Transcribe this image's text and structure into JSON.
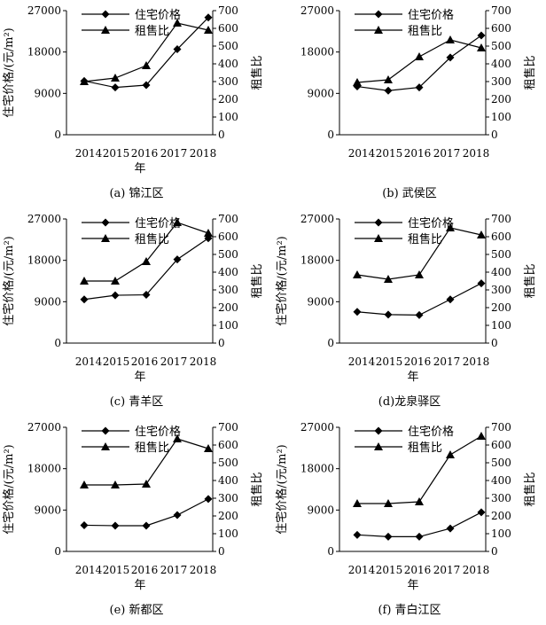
{
  "chart_data": [
    {
      "type": "line",
      "caption": "(a) 锦江区",
      "categories": [
        "2014",
        "2015",
        "2016",
        "2017",
        "2018"
      ],
      "xlabel": "年",
      "ylabel": "住宅价格/(元/m²)",
      "ylabel2": "租售比",
      "ylim": [
        0,
        27000
      ],
      "ylim2": [
        0,
        700
      ],
      "yticks": [
        "0",
        "9000",
        "18000",
        "27000"
      ],
      "yticks2": [
        "0",
        "100",
        "200",
        "300",
        "400",
        "500",
        "600",
        "700"
      ],
      "series": [
        {
          "name": "住宅价格",
          "marker": "diamond",
          "axis": "left",
          "values": [
            11700,
            10300,
            10800,
            18600,
            25500
          ]
        },
        {
          "name": "租售比",
          "marker": "triangle",
          "axis": "right",
          "values": [
            300,
            320,
            390,
            630,
            590
          ]
        }
      ]
    },
    {
      "type": "line",
      "caption": "(b) 武侯区",
      "categories": [
        "2014",
        "2015",
        "2016",
        "2017",
        "2018"
      ],
      "xlabel": "",
      "ylabel": "",
      "ylabel2": "租售比",
      "ylim": [
        0,
        27000
      ],
      "ylim2": [
        0,
        700
      ],
      "yticks": [
        "0",
        "9000",
        "18000",
        "27000"
      ],
      "yticks2": [
        "0",
        "100",
        "200",
        "300",
        "400",
        "500",
        "600",
        "700"
      ],
      "series": [
        {
          "name": "住宅价格",
          "marker": "diamond",
          "axis": "left",
          "values": [
            10500,
            9600,
            10300,
            16800,
            21600
          ]
        },
        {
          "name": "租售比",
          "marker": "triangle",
          "axis": "right",
          "values": [
            295,
            310,
            440,
            535,
            490
          ]
        }
      ]
    },
    {
      "type": "line",
      "caption": "(c) 青羊区",
      "categories": [
        "2014",
        "2015",
        "2016",
        "2017",
        "2018"
      ],
      "xlabel": "年",
      "ylabel": "住宅价格/(元/m²)",
      "ylabel2": "租售比",
      "ylim": [
        0,
        27000
      ],
      "ylim2": [
        0,
        700
      ],
      "yticks": [
        "0",
        "9000",
        "18000",
        "27000"
      ],
      "yticks2": [
        "0",
        "100",
        "200",
        "300",
        "400",
        "500",
        "600",
        "700"
      ],
      "series": [
        {
          "name": "住宅价格",
          "marker": "diamond",
          "axis": "left",
          "values": [
            9500,
            10400,
            10500,
            18200,
            22800
          ]
        },
        {
          "name": "租售比",
          "marker": "triangle",
          "axis": "right",
          "values": [
            350,
            350,
            460,
            680,
            620
          ]
        }
      ]
    },
    {
      "type": "line",
      "caption": "(d)龙泉驿区",
      "categories": [
        "2014",
        "2015",
        "2016",
        "2017",
        "2018"
      ],
      "xlabel": "年",
      "ylabel": "住宅价格/(元/m²)",
      "ylabel2": "租售比",
      "ylim": [
        0,
        27000
      ],
      "ylim2": [
        0,
        700
      ],
      "yticks": [
        "0",
        "9000",
        "18000",
        "27000"
      ],
      "yticks2": [
        "0",
        "100",
        "200",
        "300",
        "400",
        "500",
        "600",
        "700"
      ],
      "series": [
        {
          "name": "住宅价格",
          "marker": "diamond",
          "axis": "left",
          "values": [
            6800,
            6200,
            6100,
            9500,
            13000
          ]
        },
        {
          "name": "租售比",
          "marker": "triangle",
          "axis": "right",
          "values": [
            385,
            360,
            385,
            650,
            610
          ]
        }
      ]
    },
    {
      "type": "line",
      "caption": "(e) 新都区",
      "categories": [
        "2014",
        "2015",
        "2016",
        "2017",
        "2018"
      ],
      "xlabel": "年",
      "ylabel": "住宅价格/(元/m²)",
      "ylabel2": "租售比",
      "ylim": [
        0,
        27000
      ],
      "ylim2": [
        0,
        700
      ],
      "yticks": [
        "0",
        "9000",
        "18000",
        "27000"
      ],
      "yticks2": [
        "0",
        "100",
        "200",
        "300",
        "400",
        "500",
        "600",
        "700"
      ],
      "series": [
        {
          "name": "住宅价格",
          "marker": "diamond",
          "axis": "left",
          "values": [
            5700,
            5600,
            5600,
            7900,
            11400
          ]
        },
        {
          "name": "租售比",
          "marker": "triangle",
          "axis": "right",
          "values": [
            375,
            375,
            380,
            635,
            580
          ]
        }
      ]
    },
    {
      "type": "line",
      "caption": "(f) 青白江区",
      "categories": [
        "2014",
        "2015",
        "2016",
        "2017",
        "2018"
      ],
      "xlabel": "年",
      "ylabel": "住宅价格/(元/m²)",
      "ylabel2": "租售比",
      "ylim": [
        0,
        27000
      ],
      "ylim2": [
        0,
        700
      ],
      "yticks": [
        "0",
        "9000",
        "18000",
        "27000"
      ],
      "yticks2": [
        "0",
        "100",
        "200",
        "300",
        "400",
        "500",
        "600",
        "700"
      ],
      "series": [
        {
          "name": "住宅价格",
          "marker": "diamond",
          "axis": "left",
          "values": [
            3600,
            3200,
            3200,
            5000,
            8500
          ]
        },
        {
          "name": "租售比",
          "marker": "triangle",
          "axis": "right",
          "values": [
            270,
            270,
            280,
            545,
            650
          ]
        }
      ]
    }
  ]
}
